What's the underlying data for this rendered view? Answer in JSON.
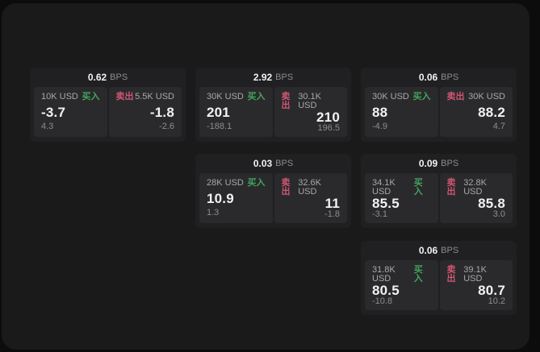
{
  "labels": {
    "buy": "买入",
    "sell": "卖出",
    "bps_unit": "BPS"
  },
  "colors": {
    "page-bg": "#0c0c0d",
    "container-bg": "#1a1a1b",
    "card-bg": "#202022",
    "panel-bg": "#2a2a2c",
    "buy-accent": "#43a45c",
    "sell-accent": "#cf5672",
    "text-primary": "#f2f2f2",
    "text-secondary": "#a8a8a8"
  },
  "cards": [
    {
      "bps": "0.62",
      "buy": {
        "amount": "10K USD",
        "price": "-3.7",
        "change": "4.3"
      },
      "sell": {
        "amount": "5.5K USD",
        "price": "-1.8",
        "change": "-2.6"
      }
    },
    {
      "bps": "2.92",
      "buy": {
        "amount": "30K USD",
        "price": "201",
        "change": "-188.1"
      },
      "sell": {
        "amount": "30.1K USD",
        "price": "210",
        "change": "196.5"
      }
    },
    {
      "bps": "0.06",
      "buy": {
        "amount": "30K USD",
        "price": "88",
        "change": "-4.9"
      },
      "sell": {
        "amount": "30K USD",
        "price": "88.2",
        "change": "4.7"
      }
    },
    {
      "bps": "0.03",
      "buy": {
        "amount": "28K USD",
        "price": "10.9",
        "change": "1.3"
      },
      "sell": {
        "amount": "32.6K USD",
        "price": "11",
        "change": "-1.8"
      }
    },
    {
      "bps": "0.09",
      "buy": {
        "amount": "34.1K USD",
        "price": "85.5",
        "change": "-3.1"
      },
      "sell": {
        "amount": "32.8K USD",
        "price": "85.8",
        "change": "3.0"
      }
    },
    {
      "bps": "0.06",
      "buy": {
        "amount": "31.8K USD",
        "price": "80.5",
        "change": "-10.8"
      },
      "sell": {
        "amount": "39.1K USD",
        "price": "80.7",
        "change": "10.2"
      }
    }
  ]
}
